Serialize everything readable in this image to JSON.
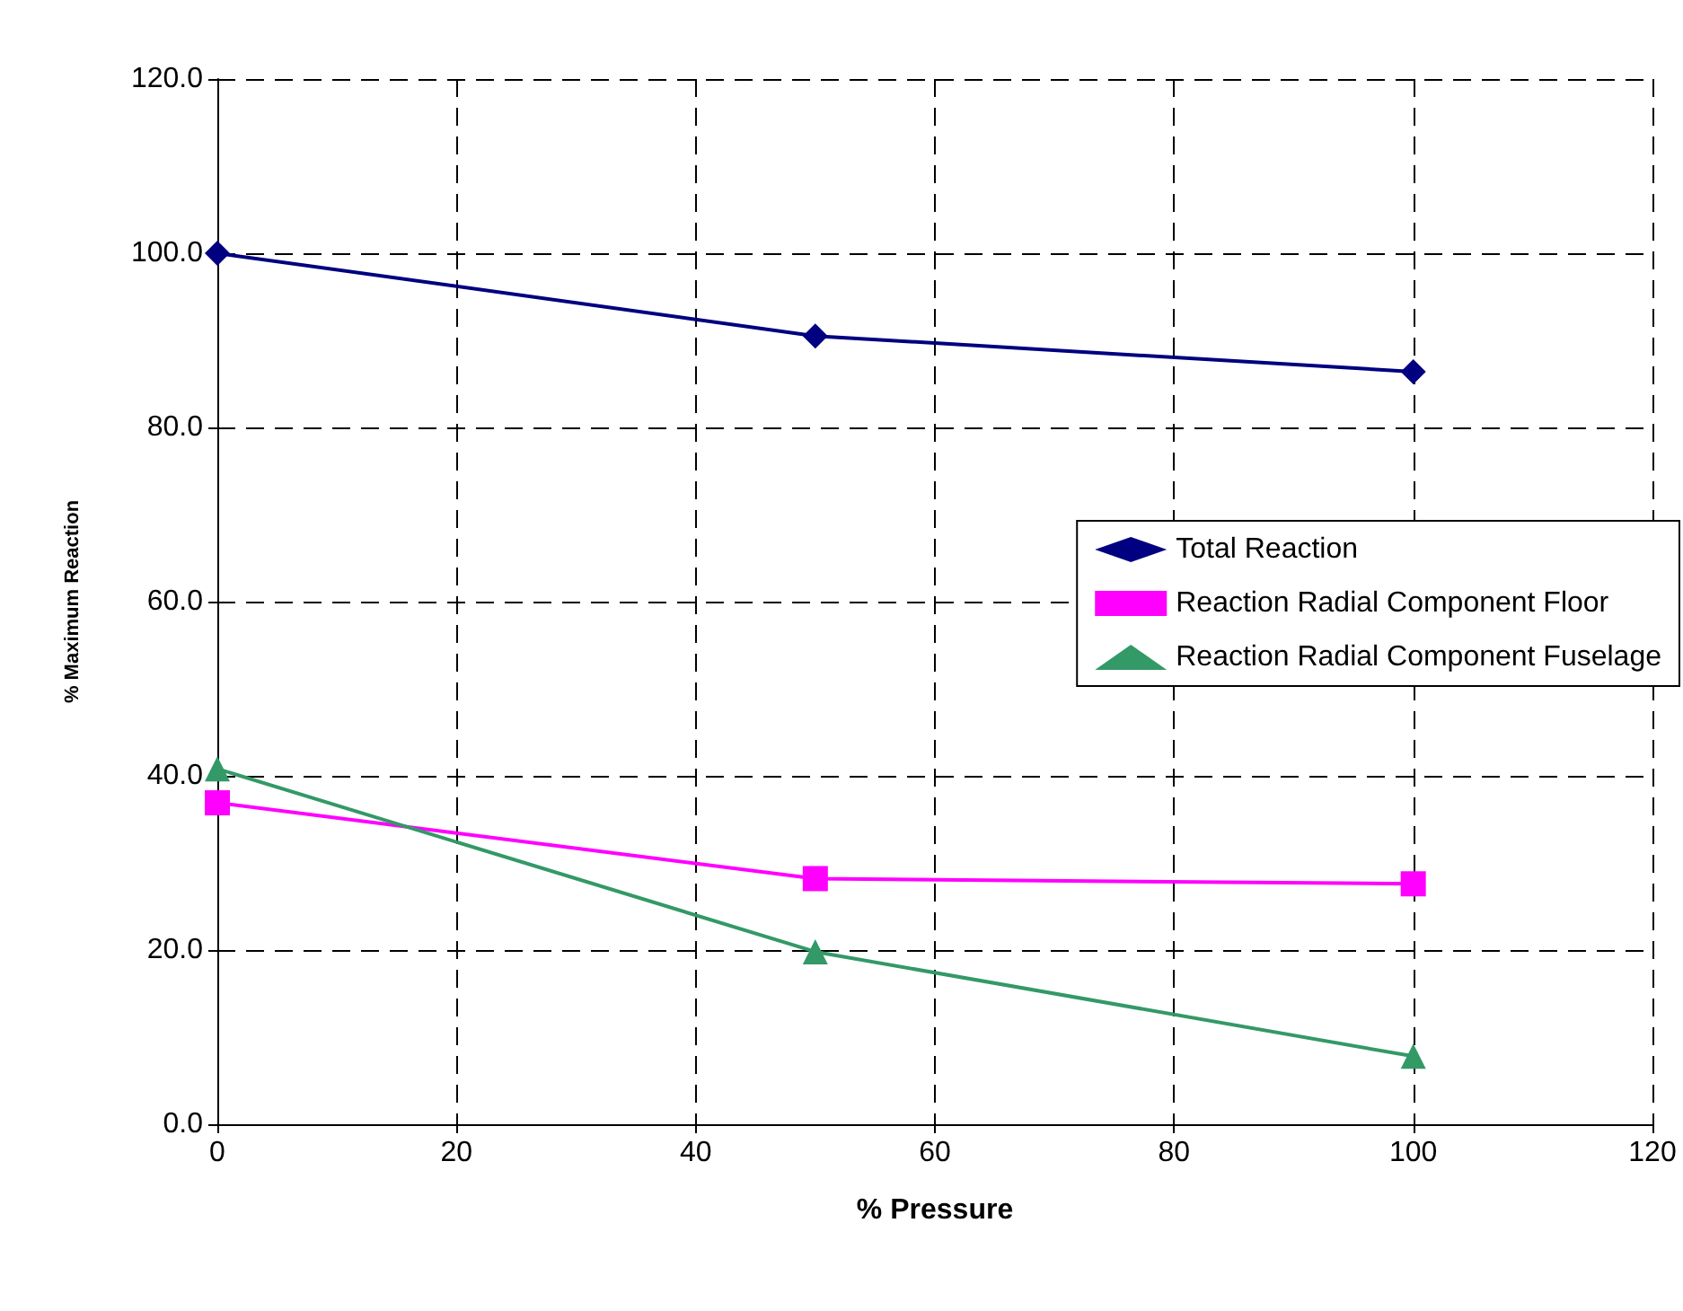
{
  "chart_data": {
    "type": "line",
    "xlabel": "% Pressure",
    "ylabel": "% Maximum Reaction",
    "x": [
      0,
      50,
      100
    ],
    "series": [
      {
        "name": "Total Reaction",
        "color": "#000080",
        "marker": "diamond",
        "values": [
          100,
          90.5,
          86.4
        ]
      },
      {
        "name": "Reaction Radial Component Floor",
        "color": "#ff00ff",
        "marker": "square",
        "values": [
          36.9,
          28.2,
          27.6
        ]
      },
      {
        "name": "Reaction Radial Component Fuselage",
        "color": "#339966",
        "marker": "triangle",
        "values": [
          40.8,
          19.8,
          7.8
        ]
      }
    ],
    "xlim": [
      0,
      120
    ],
    "xticks": [
      0,
      20,
      40,
      60,
      80,
      100,
      120
    ],
    "ylim": [
      0,
      120
    ],
    "yticks": [
      {
        "value": 0,
        "label": "0.0"
      },
      {
        "value": 20,
        "label": "20.0"
      },
      {
        "value": 40,
        "label": "40.0"
      },
      {
        "value": 60,
        "label": "60.0"
      },
      {
        "value": 80,
        "label": "80.0"
      },
      {
        "value": 100,
        "label": "100.0"
      },
      {
        "value": 120,
        "label": "120.0"
      }
    ],
    "grid": true,
    "legend": "right",
    "line_style": "solid"
  }
}
